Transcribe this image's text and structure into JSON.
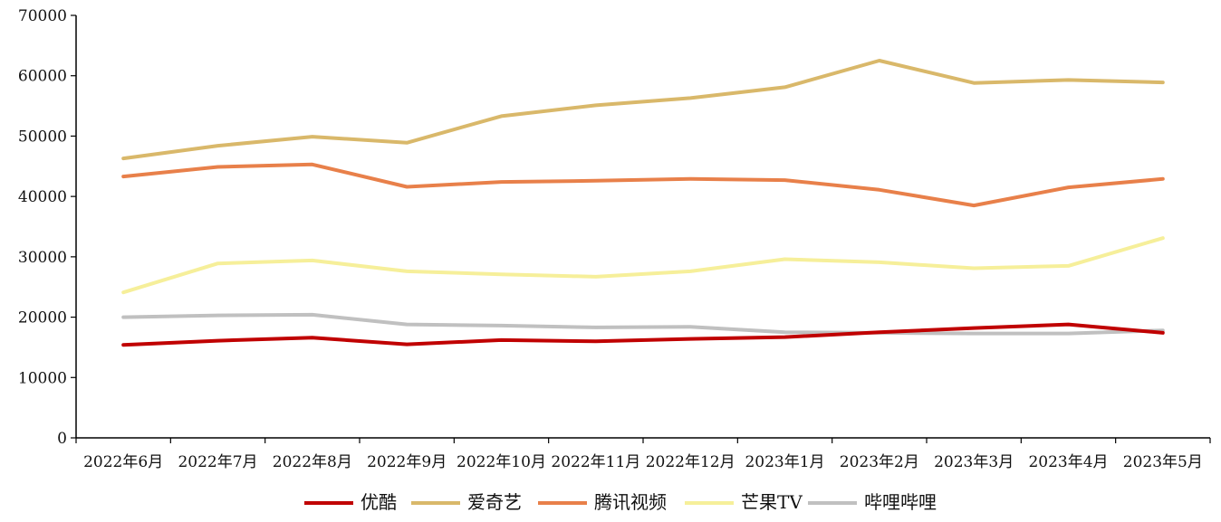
{
  "chart_data": {
    "type": "line",
    "categories": [
      "2022年6月",
      "2022年7月",
      "2022年8月",
      "2022年9月",
      "2022年10月",
      "2022年11月",
      "2022年12月",
      "2023年1月",
      "2023年2月",
      "2023年3月",
      "2023年4月",
      "2023年5月"
    ],
    "y_ticks": [
      "0",
      "10000",
      "20000",
      "30000",
      "40000",
      "50000",
      "60000",
      "70000"
    ],
    "ylim": [
      0,
      70000
    ],
    "grid": false,
    "legend_position": "bottom",
    "series": [
      {
        "name": "优酷",
        "color": "#c00000",
        "values": [
          15400,
          16100,
          16600,
          15500,
          16200,
          16000,
          16400,
          16700,
          17500,
          18200,
          18800,
          17400
        ]
      },
      {
        "name": "爱奇艺",
        "color": "#d9b86a",
        "values": [
          46300,
          48400,
          49900,
          48900,
          53300,
          55100,
          56300,
          58100,
          62500,
          58800,
          59300,
          58900
        ]
      },
      {
        "name": "腾讯视频",
        "color": "#e8804a",
        "values": [
          43300,
          44900,
          45300,
          41600,
          42400,
          42600,
          42900,
          42700,
          41100,
          38500,
          41500,
          42900
        ]
      },
      {
        "name": "芒果TV",
        "color": "#f6ef9a",
        "values": [
          24100,
          28900,
          29400,
          27600,
          27100,
          26700,
          27600,
          29600,
          29100,
          28100,
          28500,
          33100
        ]
      },
      {
        "name": "哔哩哔哩",
        "color": "#c0c0c0",
        "values": [
          20000,
          20300,
          20400,
          18800,
          18600,
          18300,
          18400,
          17500,
          17400,
          17300,
          17300,
          17800
        ]
      }
    ]
  }
}
